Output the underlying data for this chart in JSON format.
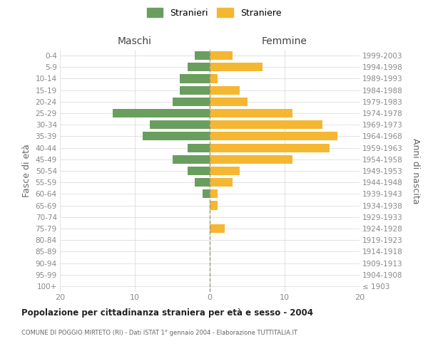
{
  "age_groups": [
    "100+",
    "95-99",
    "90-94",
    "85-89",
    "80-84",
    "75-79",
    "70-74",
    "65-69",
    "60-64",
    "55-59",
    "50-54",
    "45-49",
    "40-44",
    "35-39",
    "30-34",
    "25-29",
    "20-24",
    "15-19",
    "10-14",
    "5-9",
    "0-4"
  ],
  "birth_years": [
    "≤ 1903",
    "1904-1908",
    "1909-1913",
    "1914-1918",
    "1919-1923",
    "1924-1928",
    "1929-1933",
    "1934-1938",
    "1939-1943",
    "1944-1948",
    "1949-1953",
    "1954-1958",
    "1959-1963",
    "1964-1968",
    "1969-1973",
    "1974-1978",
    "1979-1983",
    "1984-1988",
    "1989-1993",
    "1994-1998",
    "1999-2003"
  ],
  "maschi": [
    0,
    0,
    0,
    0,
    0,
    0,
    0,
    0,
    1,
    2,
    3,
    5,
    3,
    9,
    8,
    13,
    5,
    4,
    4,
    3,
    2
  ],
  "femmine": [
    0,
    0,
    0,
    0,
    0,
    2,
    0,
    1,
    1,
    3,
    4,
    11,
    16,
    17,
    15,
    11,
    5,
    4,
    1,
    7,
    3
  ],
  "maschi_color": "#6a9e5f",
  "femmine_color": "#f5b731",
  "title": "Popolazione per cittadinanza straniera per età e sesso - 2004",
  "subtitle": "COMUNE DI POGGIO MIRTETO (RI) - Dati ISTAT 1° gennaio 2004 - Elaborazione TUTTITALIA.IT",
  "ylabel_left": "Fasce di età",
  "ylabel_right": "Anni di nascita",
  "header_maschi": "Maschi",
  "header_femmine": "Femmine",
  "legend_maschi": "Stranieri",
  "legend_femmine": "Straniere",
  "xlim": 20,
  "bg_color": "#ffffff",
  "grid_color": "#dddddd",
  "bar_height": 0.75
}
